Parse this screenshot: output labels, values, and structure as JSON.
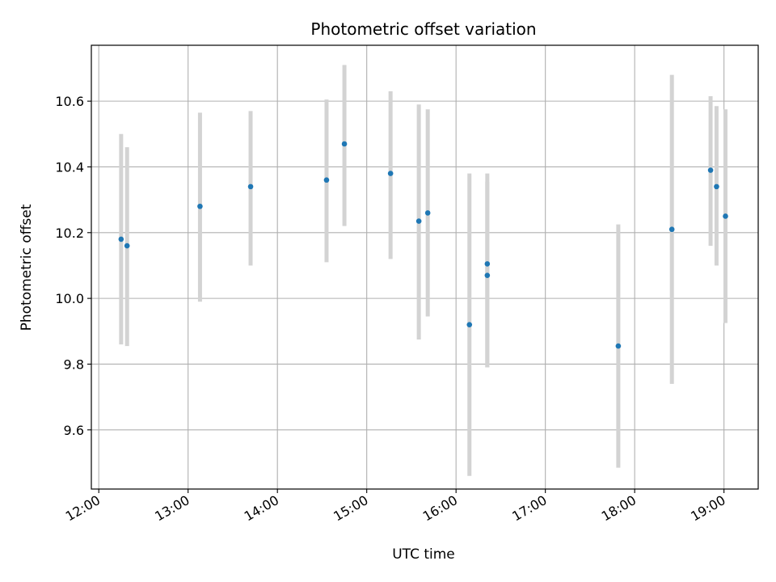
{
  "chart_data": {
    "type": "scatter",
    "title": "Photometric offset variation",
    "xlabel": "UTC time",
    "ylabel": "Photometric offset",
    "xlim": [
      "11:55",
      "19:23"
    ],
    "ylim": [
      9.42,
      10.77
    ],
    "xticks": [
      "12:00",
      "13:00",
      "14:00",
      "15:00",
      "16:00",
      "17:00",
      "18:00",
      "19:00"
    ],
    "yticks": [
      9.6,
      9.8,
      10.0,
      10.2,
      10.4,
      10.6
    ],
    "ytick_labels": [
      "9.6",
      "9.8",
      "10.0",
      "10.2",
      "10.4",
      "10.6"
    ],
    "grid": true,
    "marker_color": "#1f77b4",
    "errorbar_color": "#d3d3d3",
    "points": [
      {
        "x": "12:15",
        "y": 10.18,
        "ylow": 9.86,
        "yhigh": 10.5
      },
      {
        "x": "12:19",
        "y": 10.16,
        "ylow": 9.855,
        "yhigh": 10.46
      },
      {
        "x": "13:08",
        "y": 10.28,
        "ylow": 9.99,
        "yhigh": 10.565
      },
      {
        "x": "13:42",
        "y": 10.34,
        "ylow": 10.1,
        "yhigh": 10.57
      },
      {
        "x": "14:33",
        "y": 10.36,
        "ylow": 10.11,
        "yhigh": 10.605
      },
      {
        "x": "14:45",
        "y": 10.47,
        "ylow": 10.22,
        "yhigh": 10.71
      },
      {
        "x": "15:16",
        "y": 10.38,
        "ylow": 10.12,
        "yhigh": 10.63
      },
      {
        "x": "15:35",
        "y": 10.235,
        "ylow": 9.875,
        "yhigh": 10.59
      },
      {
        "x": "15:41",
        "y": 10.26,
        "ylow": 9.945,
        "yhigh": 10.575
      },
      {
        "x": "16:09",
        "y": 9.92,
        "ylow": 9.46,
        "yhigh": 10.38
      },
      {
        "x": "16:21",
        "y": 10.105,
        "ylow": 9.79,
        "yhigh": 10.38
      },
      {
        "x": "16:21",
        "y": 10.07,
        "ylow": 9.79,
        "yhigh": 10.355
      },
      {
        "x": "17:49",
        "y": 9.855,
        "ylow": 9.485,
        "yhigh": 10.225
      },
      {
        "x": "18:25",
        "y": 10.21,
        "ylow": 9.74,
        "yhigh": 10.68
      },
      {
        "x": "18:51",
        "y": 10.39,
        "ylow": 10.16,
        "yhigh": 10.615
      },
      {
        "x": "18:55",
        "y": 10.34,
        "ylow": 10.1,
        "yhigh": 10.585
      },
      {
        "x": "19:01",
        "y": 10.25,
        "ylow": 9.925,
        "yhigh": 10.575
      }
    ]
  }
}
